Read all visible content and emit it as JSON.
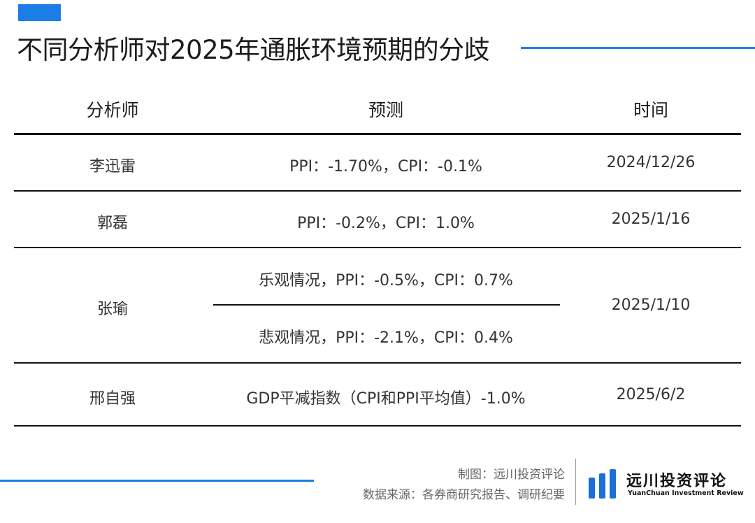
{
  "title": "不同分析师对2025年通胀环境预期的分歧",
  "colors": {
    "accent": "#1a7ee6",
    "rule": "#111111",
    "logo": "#1a6fd8"
  },
  "table": {
    "headers": [
      "分析师",
      "预测",
      "时间"
    ],
    "rows": [
      {
        "analyst": "李迅雷",
        "forecast": "PPI：-1.70%，CPI：-0.1%",
        "date": "2024/12/26"
      },
      {
        "analyst": "郭磊",
        "forecast": "PPI：-0.2%，CPI：1.0%",
        "date": "2025/1/16"
      },
      {
        "analyst": "张瑜",
        "forecast_optimistic": "乐观情况，PPI：-0.5%，CPI：0.7%",
        "forecast_pessimistic": "悲观情况，PPI：-2.1%，CPI：0.4%",
        "date": "2025/1/10"
      },
      {
        "analyst": "邢自强",
        "forecast": "GDP平减指数（CPI和PPI平均值）-1.0%",
        "date": "2025/6/2"
      }
    ]
  },
  "footer": {
    "credit": "制图：远川投资评论",
    "source": "数据来源：各券商研究报告、调研纪要",
    "logo_cn": "远川投资评论",
    "logo_en": "YuanChuan Investment Review",
    "logo_icon": "three-vertical-bars-icon"
  }
}
